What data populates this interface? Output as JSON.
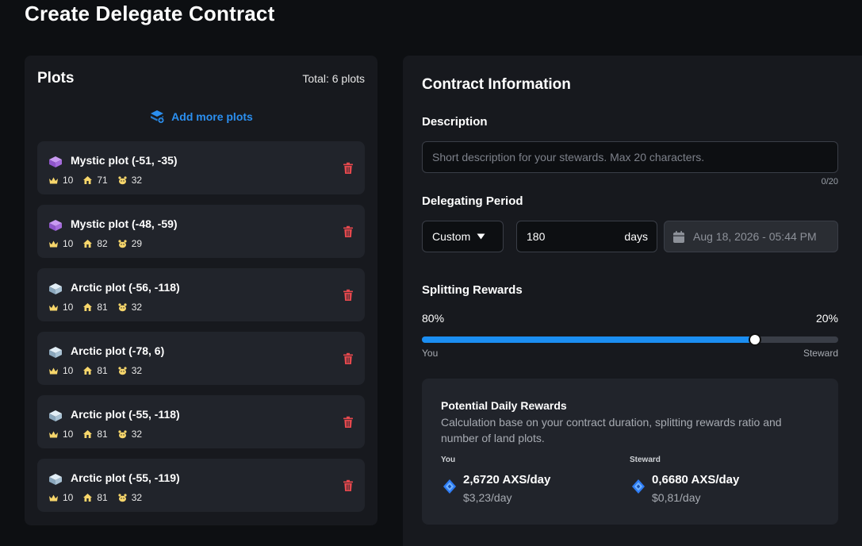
{
  "page": {
    "title": "Create Delegate Contract"
  },
  "plots": {
    "title": "Plots",
    "total": "Total: 6 plots",
    "add_label": "Add more plots",
    "items": [
      {
        "name": "Mystic plot (-51, -35)",
        "type": "mystic",
        "stat1": "10",
        "stat2": "71",
        "stat3": "32"
      },
      {
        "name": "Mystic plot (-48, -59)",
        "type": "mystic",
        "stat1": "10",
        "stat2": "82",
        "stat3": "29"
      },
      {
        "name": "Arctic plot (-56, -118)",
        "type": "arctic",
        "stat1": "10",
        "stat2": "81",
        "stat3": "32"
      },
      {
        "name": "Arctic plot (-78, 6)",
        "type": "arctic",
        "stat1": "10",
        "stat2": "81",
        "stat3": "32"
      },
      {
        "name": "Arctic plot (-55, -118)",
        "type": "arctic",
        "stat1": "10",
        "stat2": "81",
        "stat3": "32"
      },
      {
        "name": "Arctic plot (-55, -119)",
        "type": "arctic",
        "stat1": "10",
        "stat2": "81",
        "stat3": "32"
      }
    ],
    "stat_icons": [
      "crown-icon",
      "house-icon",
      "paw-icon"
    ],
    "type_colors": {
      "mystic": "#b17be8",
      "arctic": "#b7d3e6"
    }
  },
  "contract": {
    "title": "Contract Information",
    "description": {
      "label": "Description",
      "placeholder": "Short description for your stewards. Max 20 characters.",
      "value": "",
      "counter": "0/20"
    },
    "period": {
      "label": "Delegating Period",
      "mode": "Custom",
      "days_value": "180",
      "days_unit": "days",
      "end_date": "Aug 18, 2026 - 05:44 PM"
    },
    "splitting": {
      "label": "Splitting Rewards",
      "you_percent": 80,
      "you_display": "80%",
      "steward_display": "20%",
      "you_label": "You",
      "steward_label": "Steward"
    },
    "rewards": {
      "title": "Potential Daily Rewards",
      "description": "Calculation base on your contract duration, splitting rewards ratio and number of land plots.",
      "you": {
        "label": "You",
        "amount": "2,6720 AXS/day",
        "usd": "$3,23/day"
      },
      "steward": {
        "label": "Steward",
        "amount": "0,6680 AXS/day",
        "usd": "$0,81/day"
      }
    }
  },
  "colors": {
    "accent": "#1b8ef2",
    "danger": "#e5484d",
    "axs": "#2f7df6"
  }
}
